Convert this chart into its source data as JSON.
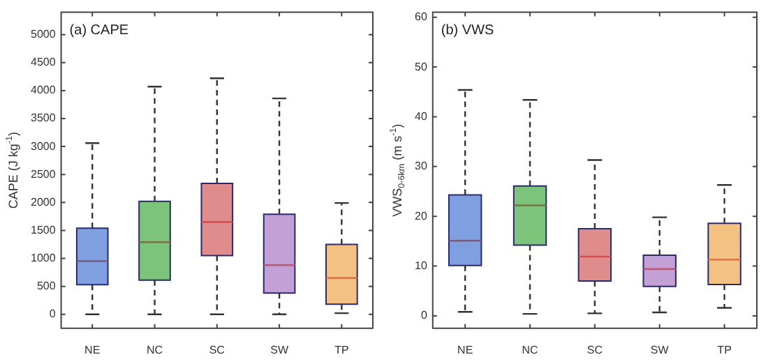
{
  "chart_data": [
    {
      "type": "box",
      "title": "(a) CAPE",
      "ylabel": "CAPE (J kg$^{-1}$)",
      "categories": [
        "NE",
        "NC",
        "SC",
        "SW",
        "TP"
      ],
      "colors": [
        "#7f9fe0",
        "#7cc47a",
        "#e08c8c",
        "#c3a0d6",
        "#f3c283"
      ],
      "boxes": [
        {
          "low": 0,
          "q1": 530,
          "median": 950,
          "q3": 1540,
          "high": 3060
        },
        {
          "low": 0,
          "q1": 610,
          "median": 1290,
          "q3": 2020,
          "high": 4070
        },
        {
          "low": 0,
          "q1": 1050,
          "median": 1650,
          "q3": 2340,
          "high": 4220
        },
        {
          "low": 0,
          "q1": 380,
          "median": 880,
          "q3": 1790,
          "high": 3860
        },
        {
          "low": 20,
          "q1": 180,
          "median": 650,
          "q3": 1250,
          "high": 1990
        }
      ],
      "ylim": [
        -250,
        5400
      ],
      "yticks": [
        0,
        500,
        1000,
        1500,
        2000,
        2500,
        3000,
        3500,
        4000,
        4500,
        5000
      ],
      "grid": false
    },
    {
      "type": "box",
      "title": "(b) VWS",
      "ylabel": "VWS$_{0-6km}$ (m s$^{-1}$)",
      "categories": [
        "NE",
        "NC",
        "SC",
        "SW",
        "TP"
      ],
      "colors": [
        "#7f9fe0",
        "#7cc47a",
        "#e08c8c",
        "#c3a0d6",
        "#f3c283"
      ],
      "boxes": [
        {
          "low": 0.8,
          "q1": 10.1,
          "median": 15.1,
          "q3": 24.3,
          "high": 45.4
        },
        {
          "low": 0.4,
          "q1": 14.2,
          "median": 22.2,
          "q3": 26.1,
          "high": 43.4
        },
        {
          "low": 0.5,
          "q1": 7.0,
          "median": 11.9,
          "q3": 17.5,
          "high": 31.3
        },
        {
          "low": 0.7,
          "q1": 5.9,
          "median": 9.4,
          "q3": 12.2,
          "high": 19.8
        },
        {
          "low": 1.6,
          "q1": 6.3,
          "median": 11.3,
          "q3": 18.6,
          "high": 26.3
        }
      ],
      "ylim": [
        -2.5,
        61
      ],
      "yticks": [
        0,
        10,
        20,
        30,
        40,
        50,
        60
      ],
      "grid": false
    }
  ]
}
